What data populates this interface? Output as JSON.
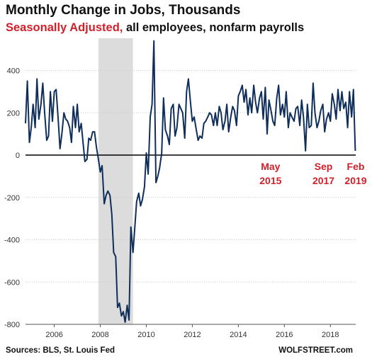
{
  "header": {
    "title": "Monthly Change in Jobs, Thousands",
    "subtitle_red": "Seasonally Adjusted,",
    "subtitle_rest": " all employees, nonfarm payrolls"
  },
  "footer": {
    "source": "Sources: BLS, St. Louis Fed",
    "brand": "WOLFSTREET.com"
  },
  "colors": {
    "line": "#0f2e5a",
    "recession": "#dcdcdc",
    "annotation": "#d0212b",
    "grid": "#c9c9c9",
    "zero": "#000000"
  },
  "chart_data": {
    "type": "line",
    "title": "Monthly Change in Jobs, Thousands",
    "subtitle": "Seasonally Adjusted, all employees, nonfarm payrolls",
    "xlabel": "",
    "ylabel": "",
    "xlim": [
      2004.75,
      2019.1
    ],
    "ylim": [
      -800,
      560
    ],
    "y_ticks": [
      -800,
      -600,
      -400,
      -200,
      0,
      200,
      400
    ],
    "x_ticks": [
      2006,
      2008,
      2010,
      2012,
      2014,
      2016,
      2018
    ],
    "grid": "horizontal",
    "recession_band": [
      2007.92,
      2009.42
    ],
    "annotations": [
      {
        "line1": "May",
        "line2": "2015",
        "x": 2015.4
      },
      {
        "line1": "Sep",
        "line2": "2017",
        "x": 2017.7
      },
      {
        "line1": "Feb",
        "line2": "2019",
        "x": 2019.1
      }
    ],
    "series": [
      {
        "x": [
          2004.75,
          2004.83,
          2004.92,
          2005.0,
          2005.08,
          2005.17,
          2005.25,
          2005.33,
          2005.42,
          2005.5,
          2005.58,
          2005.67,
          2005.75,
          2005.83,
          2005.92,
          2006.0,
          2006.08,
          2006.17,
          2006.25,
          2006.33,
          2006.42,
          2006.5,
          2006.58,
          2006.67,
          2006.75,
          2006.83,
          2006.92,
          2007.0,
          2007.08,
          2007.17,
          2007.25,
          2007.33,
          2007.42,
          2007.5,
          2007.58,
          2007.67,
          2007.75,
          2007.83,
          2007.92,
          2008.0,
          2008.08,
          2008.17,
          2008.25,
          2008.33,
          2008.42,
          2008.5,
          2008.58,
          2008.67,
          2008.75,
          2008.83,
          2008.92,
          2009.0,
          2009.08,
          2009.17,
          2009.25,
          2009.33,
          2009.42,
          2009.5,
          2009.58,
          2009.67,
          2009.75,
          2009.83,
          2009.92,
          2010.0,
          2010.08,
          2010.17,
          2010.25,
          2010.33,
          2010.42,
          2010.5,
          2010.58,
          2010.67,
          2010.75,
          2010.83,
          2010.92,
          2011.0,
          2011.08,
          2011.17,
          2011.25,
          2011.33,
          2011.42,
          2011.5,
          2011.58,
          2011.67,
          2011.75,
          2011.83,
          2011.92,
          2012.0,
          2012.08,
          2012.17,
          2012.25,
          2012.33,
          2012.42,
          2012.5,
          2012.58,
          2012.67,
          2012.75,
          2012.83,
          2012.92,
          2013.0,
          2013.08,
          2013.17,
          2013.25,
          2013.33,
          2013.42,
          2013.5,
          2013.58,
          2013.67,
          2013.75,
          2013.83,
          2013.92,
          2014.0,
          2014.08,
          2014.17,
          2014.25,
          2014.33,
          2014.42,
          2014.5,
          2014.58,
          2014.67,
          2014.75,
          2014.83,
          2014.92,
          2015.0,
          2015.08,
          2015.17,
          2015.25,
          2015.33,
          2015.42,
          2015.5,
          2015.58,
          2015.67,
          2015.75,
          2015.83,
          2015.92,
          2016.0,
          2016.08,
          2016.17,
          2016.25,
          2016.33,
          2016.42,
          2016.5,
          2016.58,
          2016.67,
          2016.75,
          2016.83,
          2016.92,
          2017.0,
          2017.08,
          2017.17,
          2017.25,
          2017.33,
          2017.42,
          2017.5,
          2017.58,
          2017.67,
          2017.75,
          2017.83,
          2017.92,
          2018.0,
          2018.08,
          2018.17,
          2018.25,
          2018.33,
          2018.42,
          2018.5,
          2018.58,
          2018.67,
          2018.75,
          2018.83,
          2018.92,
          2019.0,
          2019.08
        ],
        "values": [
          150,
          350,
          60,
          130,
          240,
          130,
          360,
          170,
          240,
          340,
          200,
          70,
          90,
          300,
          160,
          300,
          310,
          170,
          30,
          100,
          200,
          170,
          160,
          130,
          60,
          230,
          130,
          240,
          110,
          150,
          60,
          -30,
          -20,
          80,
          70,
          110,
          110,
          40,
          -20,
          -80,
          -50,
          -230,
          -190,
          -170,
          -190,
          -280,
          -460,
          -480,
          -720,
          -700,
          -760,
          -740,
          -790,
          -710,
          -780,
          -340,
          -460,
          -340,
          -220,
          -180,
          -240,
          -210,
          -150,
          10,
          -90,
          180,
          240,
          540,
          -130,
          -100,
          -60,
          10,
          270,
          120,
          90,
          50,
          220,
          240,
          90,
          130,
          240,
          220,
          200,
          80,
          300,
          360,
          250,
          160,
          180,
          120,
          70,
          90,
          80,
          150,
          160,
          180,
          200,
          190,
          140,
          200,
          140,
          230,
          200,
          120,
          160,
          240,
          110,
          180,
          230,
          210,
          140,
          280,
          300,
          330,
          250,
          310,
          190,
          270,
          200,
          330,
          250,
          200,
          270,
          300,
          170,
          320,
          100,
          260,
          210,
          160,
          140,
          270,
          330,
          190,
          240,
          180,
          300,
          130,
          200,
          180,
          160,
          220,
          230,
          140,
          260,
          180,
          20,
          240,
          130,
          140,
          340,
          200,
          130,
          160,
          210,
          240,
          110,
          170,
          200,
          160,
          290,
          240,
          170,
          310,
          210,
          300,
          220,
          250,
          130,
          300,
          180,
          310,
          20
        ]
      }
    ]
  }
}
